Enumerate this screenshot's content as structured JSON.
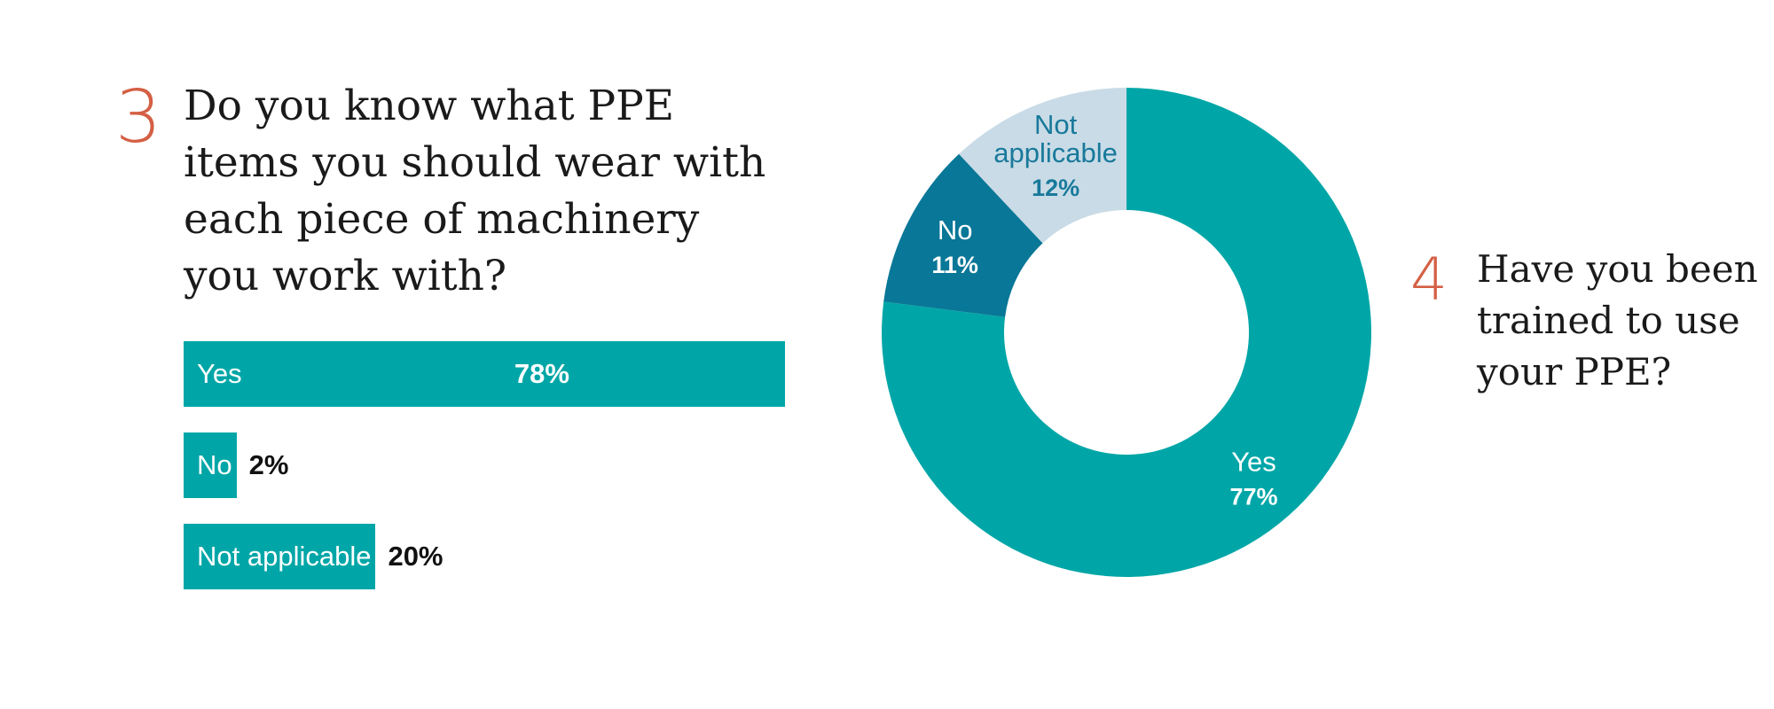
{
  "question3": {
    "number": "3",
    "text": "Do you know what PPE items you should wear with each piece of machinery you work with?"
  },
  "question4": {
    "number": "4",
    "text": "Have you been trained to use your PPE?"
  },
  "colors": {
    "accent_number": "#d45f44",
    "teal": "#00a6a7",
    "dark_teal": "#097797",
    "light_blue": "#c9dbe6",
    "light_label": "#18799b"
  },
  "chart_data": [
    {
      "type": "bar",
      "orientation": "horizontal",
      "categories": [
        "Yes",
        "No",
        "Not applicable"
      ],
      "values": [
        78,
        2,
        20
      ],
      "value_labels": [
        "78%",
        "2%",
        "20%"
      ],
      "unit": "%",
      "xlim": [
        0,
        78
      ],
      "title": "",
      "xlabel": "",
      "ylabel": "",
      "grid": false
    },
    {
      "type": "pie",
      "style": "donut",
      "categories": [
        "Yes",
        "No",
        "Not applicable"
      ],
      "values": [
        77,
        11,
        12
      ],
      "value_labels": [
        "77%",
        "11%",
        "12%"
      ],
      "label_lines": [
        [
          "Yes"
        ],
        [
          "No"
        ],
        [
          "Not",
          "applicable"
        ]
      ],
      "slice_colors": [
        "#00a6a7",
        "#097797",
        "#c9dbe6"
      ],
      "label_colors": [
        "#ffffff",
        "#ffffff",
        "#18799b"
      ],
      "title": "",
      "legend": "none"
    }
  ]
}
